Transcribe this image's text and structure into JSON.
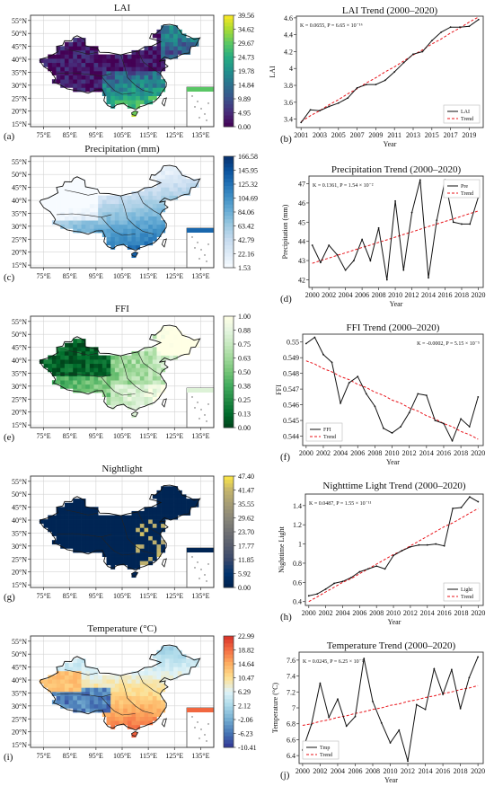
{
  "maps": [
    {
      "title": "LAI",
      "panel": "(a)",
      "colorbar_ticks": [
        "39.56",
        "34.62",
        "29.67",
        "24.73",
        "19.78",
        "14.84",
        "9.89",
        "4.95",
        "0.00"
      ],
      "colors": [
        "#440154",
        "#472c7a",
        "#3b518b",
        "#2c718e",
        "#21908d",
        "#27ad81",
        "#5cc863",
        "#aadc32",
        "#fde725"
      ],
      "lat_ticks": [
        "55°N",
        "50°N",
        "45°N",
        "40°N",
        "35°N",
        "30°N",
        "25°N",
        "20°N",
        "15°N"
      ],
      "lon_ticks": [
        "75°E",
        "85°E",
        "95°E",
        "105°E",
        "115°E",
        "125°E",
        "135°E"
      ]
    },
    {
      "title": "Precipitation (mm)",
      "panel": "(c)",
      "colorbar_ticks": [
        "166.58",
        "145.95",
        "125.32",
        "104.69",
        "84.06",
        "63.42",
        "42.79",
        "22.16",
        "1.53"
      ],
      "colors": [
        "#f7fbff",
        "#deebf7",
        "#c6dbef",
        "#9ecae1",
        "#6baed6",
        "#4292c6",
        "#2171b5",
        "#08519c",
        "#08306b"
      ],
      "lat_ticks": [
        "55°N",
        "50°N",
        "45°N",
        "40°N",
        "35°N",
        "30°N",
        "25°N",
        "20°N",
        "15°N"
      ],
      "lon_ticks": [
        "75°E",
        "85°E",
        "95°E",
        "105°E",
        "115°E",
        "125°E",
        "135°E"
      ]
    },
    {
      "title": "FFI",
      "panel": "(e)",
      "colorbar_ticks": [
        "1.00",
        "0.88",
        "0.75",
        "0.63",
        "0.50",
        "0.38",
        "0.25",
        "0.13",
        "0.00"
      ],
      "colors": [
        "#00441b",
        "#006d2c",
        "#238b45",
        "#41ab5d",
        "#74c476",
        "#a1d99b",
        "#c7e9c0",
        "#e5f5e0",
        "#ffffe5"
      ],
      "lat_ticks": [
        "55°N",
        "50°N",
        "45°N",
        "40°N",
        "35°N",
        "30°N",
        "25°N",
        "20°N",
        "15°N"
      ],
      "lon_ticks": [
        "75°E",
        "85°E",
        "95°E",
        "105°E",
        "115°E",
        "125°E",
        "135°E"
      ]
    },
    {
      "title": "Nightlight",
      "panel": "(g)",
      "colorbar_ticks": [
        "47.40",
        "41.47",
        "35.55",
        "29.62",
        "23.70",
        "17.77",
        "11.85",
        "5.92",
        "0.00"
      ],
      "colors": [
        "#00204c",
        "#00336f",
        "#39486b",
        "#575d6d",
        "#707173",
        "#8a8779",
        "#a69d75",
        "#c4b56c",
        "#ffe945"
      ],
      "lat_ticks": [
        "55°N",
        "50°N",
        "45°N",
        "40°N",
        "35°N",
        "30°N",
        "25°N",
        "20°N",
        "15°N"
      ],
      "lon_ticks": [
        "75°E",
        "85°E",
        "95°E",
        "105°E",
        "115°E",
        "125°E",
        "135°E"
      ]
    },
    {
      "title": "Temperature (°C)",
      "panel": "(i)",
      "colorbar_ticks": [
        "22.99",
        "18.82",
        "14.64",
        "10.47",
        "6.29",
        "2.12",
        "-2.06",
        "-6.23",
        "-10.41"
      ],
      "colors": [
        "#313695",
        "#4575b4",
        "#74add1",
        "#abd9e9",
        "#e0f3f8",
        "#fee090",
        "#fdae61",
        "#f46d43",
        "#d73027"
      ],
      "lat_ticks": [
        "55°N",
        "50°N",
        "45°N",
        "40°N",
        "35°N",
        "30°N",
        "25°N",
        "20°N",
        "15°N"
      ],
      "lon_ticks": [
        "75°E",
        "85°E",
        "95°E",
        "105°E",
        "115°E",
        "125°E",
        "135°E"
      ]
    }
  ],
  "chart_data": [
    {
      "type": "line",
      "panel": "(b)",
      "title": "LAI Trend (2000–2020)",
      "xlabel": "Year",
      "ylabel": "LAI",
      "stats": "K = 0.0655, P = 6.65 × 10⁻¹⁶",
      "stats_pos": "top-left",
      "x": [
        2001,
        2002,
        2003,
        2004,
        2005,
        2006,
        2007,
        2008,
        2009,
        2010,
        2011,
        2012,
        2013,
        2014,
        2015,
        2016,
        2017,
        2018,
        2019,
        2020
      ],
      "xticks": [
        2001,
        2003,
        2005,
        2007,
        2009,
        2011,
        2013,
        2015,
        2017,
        2019
      ],
      "xlim": [
        2000.5,
        2020.5
      ],
      "yticks": [
        3.4,
        3.6,
        3.8,
        4.0,
        4.2,
        4.4,
        4.6
      ],
      "ylim": [
        3.3,
        4.62
      ],
      "series": [
        {
          "name": "LAI",
          "values": [
            3.36,
            3.51,
            3.5,
            3.55,
            3.59,
            3.65,
            3.77,
            3.81,
            3.81,
            3.86,
            3.96,
            4.07,
            4.17,
            4.2,
            4.33,
            4.43,
            4.49,
            4.49,
            4.5,
            4.58
          ]
        },
        {
          "name": "Trend",
          "values": [
            3.37,
            3.44,
            3.5,
            3.57,
            3.63,
            3.7,
            3.76,
            3.83,
            3.89,
            3.96,
            4.02,
            4.09,
            4.16,
            4.22,
            4.29,
            4.35,
            4.42,
            4.48,
            4.55,
            4.61
          ]
        }
      ],
      "legend": "bottom-right"
    },
    {
      "type": "line",
      "panel": "(d)",
      "title": "Precipitation Trend (2000–2020)",
      "xlabel": "Year",
      "ylabel": "Precipitation (mm)",
      "stats": "K = 0.1361, P = 1.54 × 10⁻²",
      "stats_pos": "top-left",
      "x": [
        2000,
        2001,
        2002,
        2003,
        2004,
        2005,
        2006,
        2007,
        2008,
        2009,
        2010,
        2011,
        2012,
        2013,
        2014,
        2015,
        2016,
        2017,
        2018,
        2019,
        2020
      ],
      "xticks": [
        2000,
        2002,
        2004,
        2006,
        2008,
        2010,
        2012,
        2014,
        2016,
        2018,
        2020
      ],
      "xlim": [
        1999.6,
        2020.6
      ],
      "yticks": [
        42,
        43,
        44,
        45,
        46,
        47
      ],
      "ylim": [
        41.6,
        47.4
      ],
      "series": [
        {
          "name": "Pre",
          "values": [
            43.8,
            42.9,
            43.8,
            43.3,
            42.5,
            43.0,
            44.1,
            43.0,
            44.7,
            42.0,
            46.1,
            42.5,
            45.5,
            47.2,
            42.1,
            45.1,
            47.2,
            45.0,
            44.9,
            44.9,
            46.3
          ]
        },
        {
          "name": "Trend",
          "values": [
            42.86,
            43.0,
            43.13,
            43.27,
            43.4,
            43.54,
            43.68,
            43.81,
            43.95,
            44.08,
            44.22,
            44.36,
            44.49,
            44.63,
            44.77,
            44.9,
            45.04,
            45.17,
            45.31,
            45.45,
            45.58
          ]
        }
      ],
      "legend": "top-right"
    },
    {
      "type": "line",
      "panel": "(f)",
      "title": "FFI Trend (2000–2020)",
      "xlabel": "Year",
      "ylabel": "FFI",
      "stats": "K = -0.0002, P = 5.15 × 10⁻⁵",
      "stats_pos": "top-right",
      "x": [
        2000,
        2001,
        2002,
        2003,
        2004,
        2005,
        2006,
        2007,
        2008,
        2009,
        2010,
        2011,
        2012,
        2013,
        2014,
        2015,
        2016,
        2017,
        2018,
        2019,
        2020
      ],
      "xticks": [
        2000,
        2002,
        2004,
        2006,
        2008,
        2010,
        2012,
        2014,
        2016,
        2018,
        2020
      ],
      "xlim": [
        1999.6,
        2020.6
      ],
      "yticks": [
        0.544,
        0.545,
        0.546,
        0.547,
        0.548,
        0.549,
        0.55
      ],
      "ylim": [
        0.5434,
        0.5505
      ],
      "series": [
        {
          "name": "FFI",
          "values": [
            0.5499,
            0.5503,
            0.5492,
            0.5487,
            0.5461,
            0.5474,
            0.5478,
            0.5467,
            0.5459,
            0.5445,
            0.5442,
            0.5446,
            0.5455,
            0.5467,
            0.5466,
            0.545,
            0.5448,
            0.5437,
            0.5451,
            0.5446,
            0.5465
          ]
        },
        {
          "name": "Trend",
          "values": [
            0.5488,
            0.5486,
            0.5483,
            0.5481,
            0.5478,
            0.5476,
            0.5473,
            0.5471,
            0.5468,
            0.5466,
            0.5463,
            0.5461,
            0.5458,
            0.5456,
            0.5453,
            0.5451,
            0.5448,
            0.5446,
            0.5443,
            0.5441,
            0.5438
          ]
        }
      ],
      "legend": "bottom-left"
    },
    {
      "type": "line",
      "panel": "(h)",
      "title": "Nighttime Light Trend (2000–2020)",
      "xlabel": "Year",
      "ylabel": "Nighttime Light",
      "stats": "K = 0.0487, P = 1.55 × 10⁻¹¹",
      "stats_pos": "top-left",
      "x": [
        2000,
        2001,
        2002,
        2003,
        2004,
        2005,
        2006,
        2007,
        2008,
        2009,
        2010,
        2011,
        2012,
        2013,
        2014,
        2015,
        2016,
        2017,
        2018,
        2019,
        2020
      ],
      "xticks": [
        2000,
        2002,
        2004,
        2006,
        2008,
        2010,
        2012,
        2014,
        2016,
        2018,
        2020
      ],
      "xlim": [
        1999.6,
        2020.6
      ],
      "yticks": [
        0.4,
        0.6,
        0.8,
        1.0,
        1.2,
        1.4
      ],
      "ylim": [
        0.36,
        1.52
      ],
      "series": [
        {
          "name": "Light",
          "values": [
            0.46,
            0.48,
            0.53,
            0.59,
            0.61,
            0.65,
            0.71,
            0.74,
            0.77,
            0.74,
            0.88,
            0.93,
            0.97,
            0.99,
            0.99,
            1.0,
            0.98,
            1.37,
            1.38,
            1.49,
            1.44
          ]
        },
        {
          "name": "Trend",
          "values": [
            0.4,
            0.45,
            0.5,
            0.55,
            0.6,
            0.64,
            0.69,
            0.74,
            0.79,
            0.84,
            0.89,
            0.93,
            0.98,
            1.03,
            1.08,
            1.13,
            1.18,
            1.22,
            1.27,
            1.32,
            1.37
          ]
        }
      ],
      "legend": "bottom-right"
    },
    {
      "type": "line",
      "panel": "(j)",
      "title": "Temperature Trend (2000–2020)",
      "xlabel": "Year",
      "ylabel": "Temperature (°C)",
      "stats": "K = 0.0245, P = 6.25 × 10⁻²",
      "stats_pos": "top-left",
      "x": [
        2000,
        2001,
        2002,
        2003,
        2004,
        2005,
        2006,
        2007,
        2008,
        2009,
        2010,
        2011,
        2012,
        2013,
        2014,
        2015,
        2016,
        2017,
        2018,
        2019,
        2020
      ],
      "xticks": [
        2000,
        2002,
        2004,
        2006,
        2008,
        2010,
        2012,
        2014,
        2016,
        2018,
        2020
      ],
      "xlim": [
        1999.6,
        2020.6
      ],
      "yticks": [
        6.4,
        6.6,
        6.8,
        7.0,
        7.2,
        7.4,
        7.6
      ],
      "ylim": [
        6.3,
        7.7
      ],
      "series": [
        {
          "name": "Tmp",
          "values": [
            6.47,
            6.79,
            7.31,
            6.88,
            7.11,
            6.77,
            6.89,
            7.62,
            7.08,
            6.81,
            6.56,
            6.72,
            6.33,
            7.04,
            6.98,
            7.49,
            7.17,
            7.48,
            6.99,
            7.38,
            7.64
          ]
        },
        {
          "name": "Trend",
          "values": [
            6.78,
            6.8,
            6.83,
            6.85,
            6.88,
            6.9,
            6.93,
            6.95,
            6.98,
            7.0,
            7.03,
            7.05,
            7.08,
            7.1,
            7.13,
            7.15,
            7.18,
            7.2,
            7.23,
            7.25,
            7.28
          ]
        }
      ],
      "legend": "bottom-left"
    }
  ]
}
